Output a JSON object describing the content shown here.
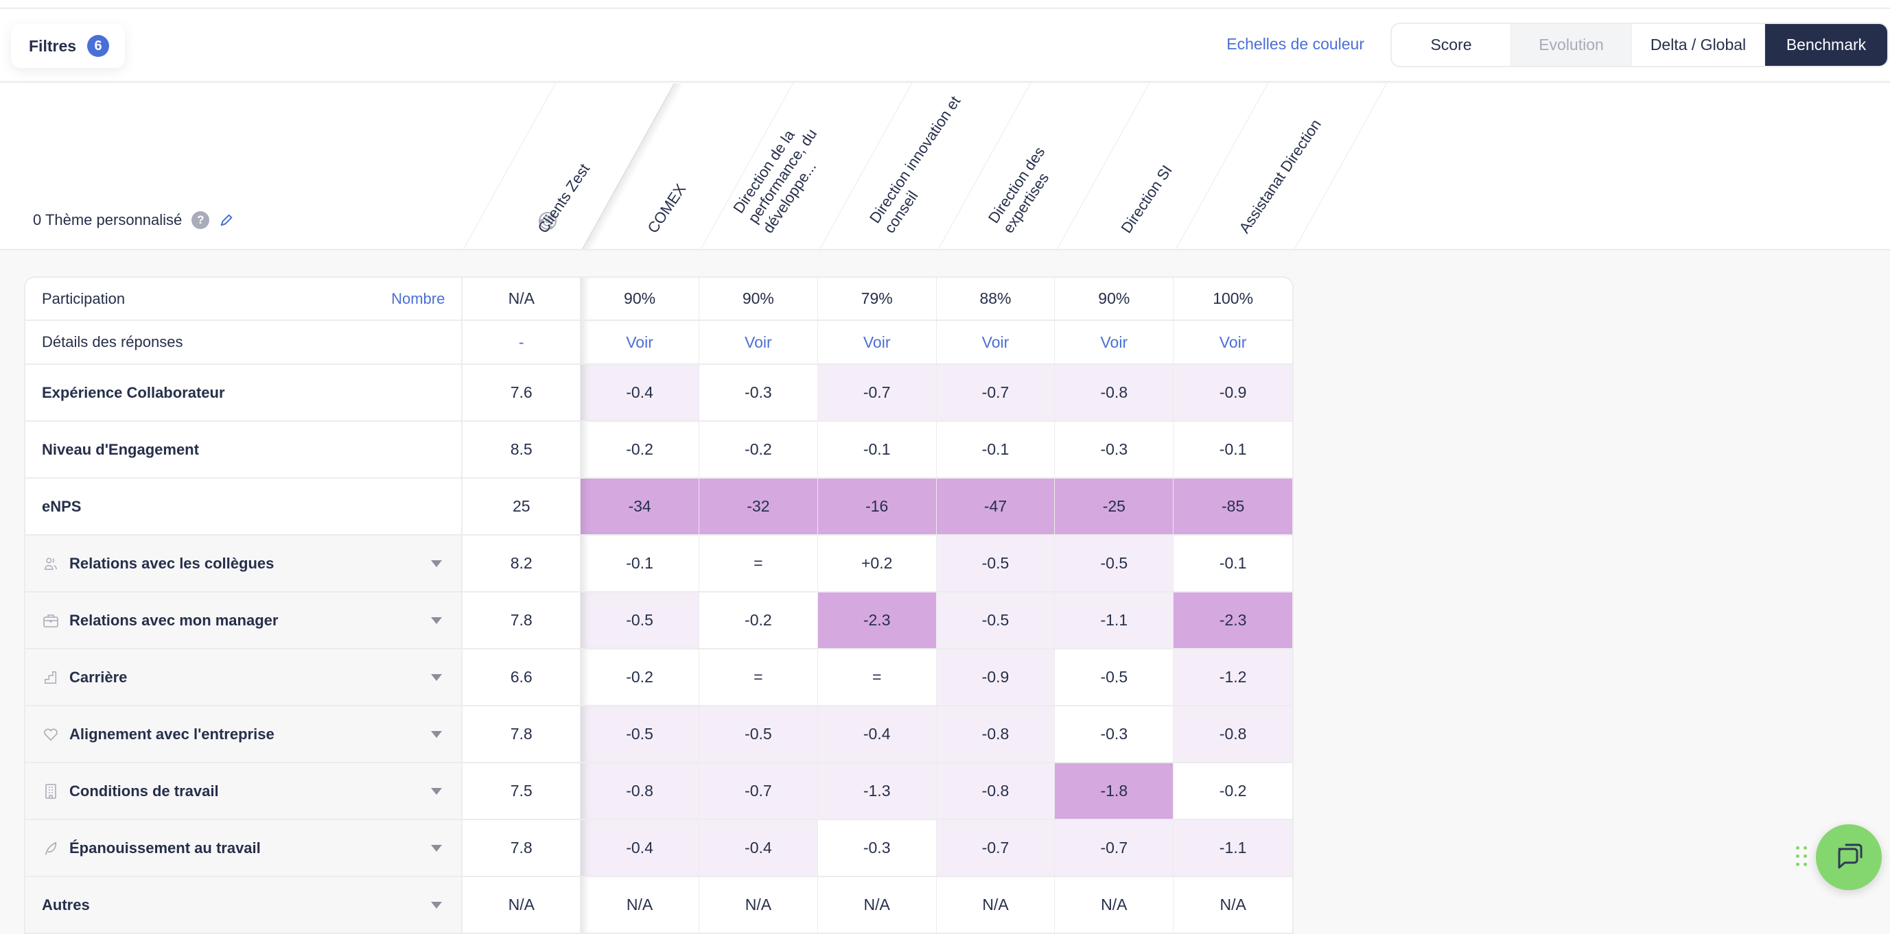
{
  "toolbar": {
    "filters_label": "Filtres",
    "filters_count": "6",
    "color_scales_link": "Echelles de couleur",
    "view_modes": [
      {
        "label": "Score",
        "state": "default"
      },
      {
        "label": "Evolution",
        "state": "disabled"
      },
      {
        "label": "Delta / Global",
        "state": "default"
      },
      {
        "label": "Benchmark",
        "state": "active"
      }
    ]
  },
  "header": {
    "custom_theme_label": "0 Thème personnalisé",
    "help_icon": "?",
    "columns": [
      {
        "label": "Clients Zest",
        "icon": "benchmark-target-icon"
      },
      {
        "label": "COMEX"
      },
      {
        "label": "Direction de la performance, du développe..."
      },
      {
        "label": "Direction innovation et conseil"
      },
      {
        "label": "Direction des expertises"
      },
      {
        "label": "Direction SI"
      },
      {
        "label": "Assistanat Direction"
      }
    ]
  },
  "colors": {
    "accent": "#4a6fd6",
    "dark": "#252f4c",
    "level_0": "#ffffff",
    "level_1": "#f5eef8",
    "level_2": "#d5a8e0",
    "chat": "#84d66e"
  },
  "table": {
    "participation": {
      "label": "Participation",
      "link": "Nombre",
      "ref": "N/A",
      "values": [
        "90%",
        "90%",
        "79%",
        "88%",
        "90%",
        "100%"
      ]
    },
    "details": {
      "label": "Détails des réponses",
      "ref": "-",
      "link_label": "Voir"
    },
    "rows": [
      {
        "label": "Expérience Collaborateur",
        "ref": "7.6",
        "values": [
          "-0.4",
          "-0.3",
          "-0.7",
          "-0.7",
          "-0.8",
          "-0.9"
        ],
        "levels": [
          1,
          0,
          1,
          1,
          1,
          1
        ]
      },
      {
        "label": "Niveau d'Engagement",
        "ref": "8.5",
        "values": [
          "-0.2",
          "-0.2",
          "-0.1",
          "-0.1",
          "-0.3",
          "-0.1"
        ],
        "levels": [
          0,
          0,
          0,
          0,
          0,
          0
        ]
      },
      {
        "label": "eNPS",
        "ref": "25",
        "values": [
          "-34",
          "-32",
          "-16",
          "-47",
          "-25",
          "-85"
        ],
        "levels": [
          2,
          2,
          2,
          2,
          2,
          2
        ]
      }
    ],
    "themes": [
      {
        "label": "Relations avec les collègues",
        "icon": "people-icon",
        "ref": "8.2",
        "values": [
          "-0.1",
          "=",
          "+0.2",
          "-0.5",
          "-0.5",
          "-0.1"
        ],
        "levels": [
          0,
          0,
          0,
          1,
          1,
          0
        ]
      },
      {
        "label": "Relations avec mon manager",
        "icon": "briefcase-icon",
        "ref": "7.8",
        "values": [
          "-0.5",
          "-0.2",
          "-2.3",
          "-0.5",
          "-1.1",
          "-2.3"
        ],
        "levels": [
          1,
          0,
          2,
          1,
          1,
          2
        ]
      },
      {
        "label": "Carrière",
        "icon": "stairs-icon",
        "ref": "6.6",
        "values": [
          "-0.2",
          "=",
          "=",
          "-0.9",
          "-0.5",
          "-1.2"
        ],
        "levels": [
          0,
          0,
          0,
          1,
          0,
          1
        ]
      },
      {
        "label": "Alignement avec l'entreprise",
        "icon": "heart-icon",
        "ref": "7.8",
        "values": [
          "-0.5",
          "-0.5",
          "-0.4",
          "-0.8",
          "-0.3",
          "-0.8"
        ],
        "levels": [
          1,
          1,
          1,
          1,
          0,
          1
        ]
      },
      {
        "label": "Conditions de travail",
        "icon": "building-icon",
        "ref": "7.5",
        "values": [
          "-0.8",
          "-0.7",
          "-1.3",
          "-0.8",
          "-1.8",
          "-0.2"
        ],
        "levels": [
          1,
          1,
          1,
          1,
          2,
          0
        ]
      },
      {
        "label": "Épanouissement au travail",
        "icon": "leaf-icon",
        "ref": "7.8",
        "values": [
          "-0.4",
          "-0.4",
          "-0.3",
          "-0.7",
          "-0.7",
          "-1.1"
        ],
        "levels": [
          1,
          1,
          0,
          1,
          1,
          1
        ]
      },
      {
        "label": "Autres",
        "icon": "",
        "ref": "N/A",
        "values": [
          "N/A",
          "N/A",
          "N/A",
          "N/A",
          "N/A",
          "N/A"
        ],
        "levels": [
          0,
          0,
          0,
          0,
          0,
          0
        ]
      }
    ]
  },
  "chat": {
    "icon": "chat-bubbles-icon"
  }
}
